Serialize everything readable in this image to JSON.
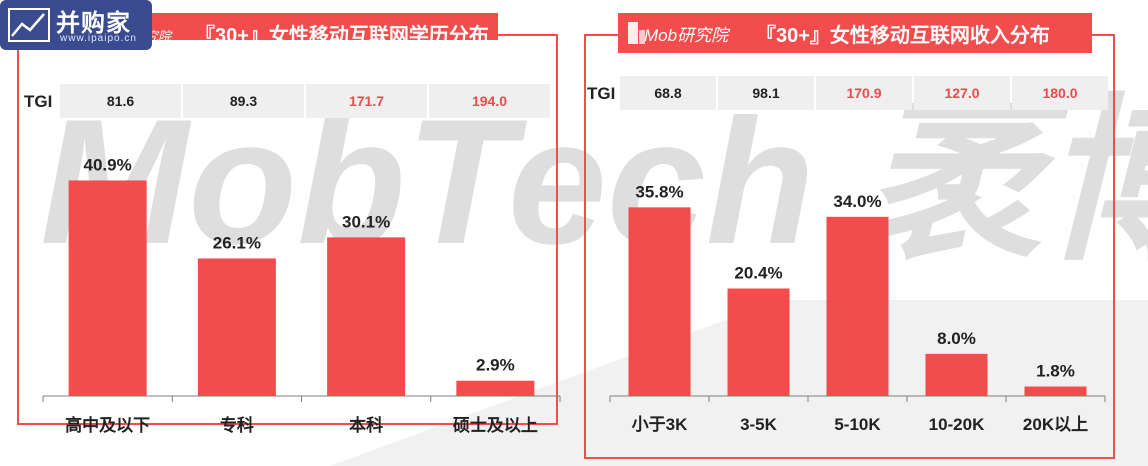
{
  "watermark": "MobTech 袤博",
  "site_logo": {
    "brand": "并购家",
    "site": "www.ipaipo.cn"
  },
  "colors": {
    "accent": "#f24c4c",
    "tgi_highlight": "#e84c4c",
    "tgi_bg": "#efefef",
    "axis": "#7f7f7f"
  },
  "chart_data": [
    {
      "type": "bar",
      "title": "『30+』女性移动互联网学历分布",
      "title_prefix": "研究院",
      "tgi_label": "TGI",
      "categories": [
        "高中及以下",
        "专科",
        "本科",
        "硕士及以上"
      ],
      "values": [
        40.9,
        26.1,
        30.1,
        2.9
      ],
      "value_labels": [
        "40.9%",
        "26.1%",
        "30.1%",
        "2.9%"
      ],
      "tgi": [
        "81.6",
        "89.3",
        "171.7",
        "194.0"
      ],
      "tgi_highlight": [
        false,
        false,
        true,
        true
      ],
      "ylim": [
        0,
        48
      ],
      "xlabel": "",
      "ylabel": ""
    },
    {
      "type": "bar",
      "title": "『30+』女性移动互联网收入分布",
      "title_prefix": "Mob研究院",
      "tgi_label": "TGI",
      "categories": [
        "小于3K",
        "3-5K",
        "5-10K",
        "10-20K",
        "20K以上"
      ],
      "values": [
        35.8,
        20.4,
        34.0,
        8.0,
        1.8
      ],
      "value_labels": [
        "35.8%",
        "20.4%",
        "34.0%",
        "8.0%",
        "1.8%"
      ],
      "tgi": [
        "68.8",
        "98.1",
        "170.9",
        "127.0",
        "180.0"
      ],
      "tgi_highlight": [
        false,
        false,
        true,
        true,
        true
      ],
      "ylim": [
        0,
        48
      ],
      "xlabel": "",
      "ylabel": ""
    }
  ]
}
